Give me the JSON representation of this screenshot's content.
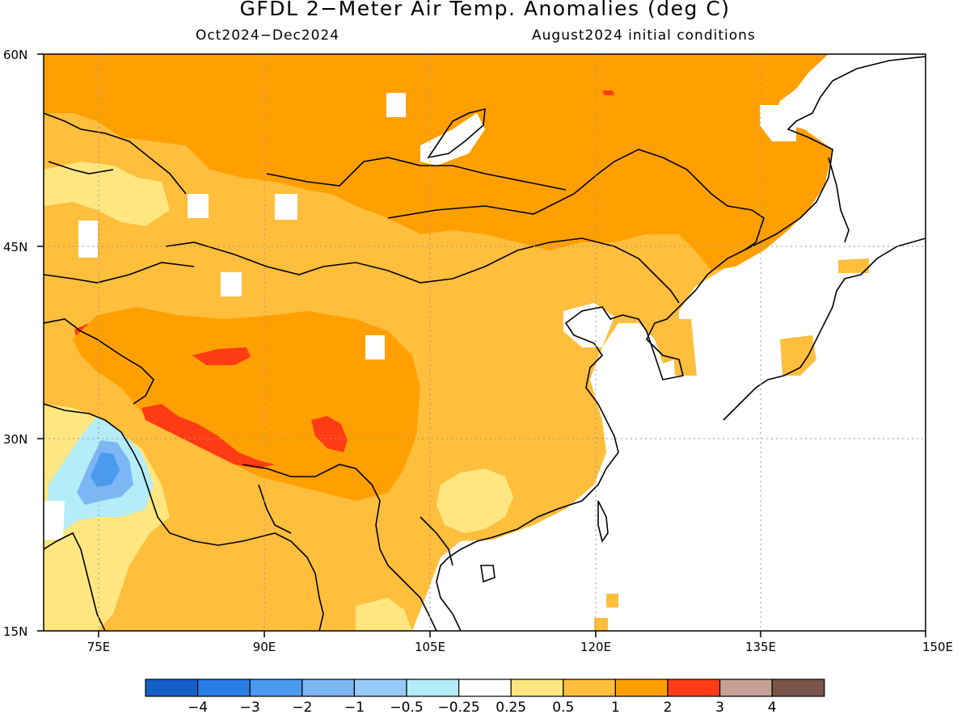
{
  "title": "GFDL 2−Meter Air Temp. Anomalies (deg C)",
  "subtitle_left": "Oct2024−Dec2024",
  "subtitle_right": "August2024 initial conditions",
  "lat_labels": [
    "60N",
    "45N",
    "30N",
    "15N"
  ],
  "lon_labels": [
    "75E",
    "90E",
    "105E",
    "120E",
    "135E",
    "150E"
  ],
  "legend": {
    "colors": [
      "#1560c8",
      "#2a7ee8",
      "#4a9af0",
      "#7cb6f4",
      "#98caf8",
      "#b4ecf8",
      "#ffffff",
      "#ffe680",
      "#ffbe3c",
      "#ffa000",
      "#ff3c14",
      "#c8a096",
      "#7a5448"
    ],
    "labels": [
      "−4",
      "−3",
      "−2",
      "−1",
      "−0.5",
      "−0.25",
      "0.25",
      "0.5",
      "1",
      "2",
      "3",
      "4"
    ]
  }
}
